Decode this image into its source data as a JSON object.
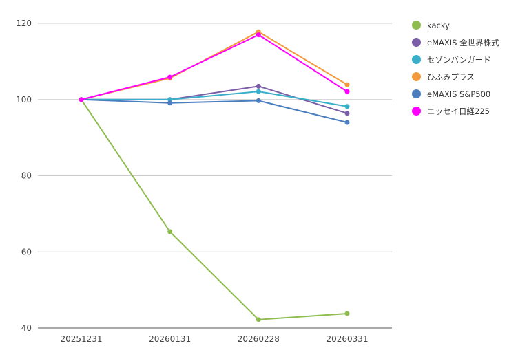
{
  "chart_data": {
    "type": "line",
    "title": "",
    "xlabel": "",
    "ylabel": "",
    "categories": [
      "20251231",
      "20260131",
      "20260228",
      "20260331"
    ],
    "ylim": [
      40,
      120
    ],
    "yticks": [
      40,
      60,
      80,
      100,
      120
    ],
    "grid": true,
    "legend_position": "right",
    "series": [
      {
        "name": "kacky",
        "color": "#8fbc4f",
        "values": [
          100,
          65.3,
          42.2,
          43.8
        ]
      },
      {
        "name": "eMAXIS 全世界株式",
        "color": "#7b5ea7",
        "values": [
          100,
          100,
          103.5,
          96.4
        ]
      },
      {
        "name": "セゾンバンガード",
        "color": "#3aafc9",
        "values": [
          100,
          100,
          102.1,
          98.2
        ]
      },
      {
        "name": "ひふみプラス",
        "color": "#f39a3c",
        "values": [
          100,
          105.6,
          117.8,
          103.9
        ]
      },
      {
        "name": "eMAXIS S&P500",
        "color": "#4a7ebf",
        "values": [
          100,
          99.1,
          99.7,
          94.0
        ]
      },
      {
        "name": "ニッセイ日経225",
        "color": "#ff00ff",
        "values": [
          100,
          105.9,
          117.0,
          102.1
        ]
      }
    ]
  }
}
